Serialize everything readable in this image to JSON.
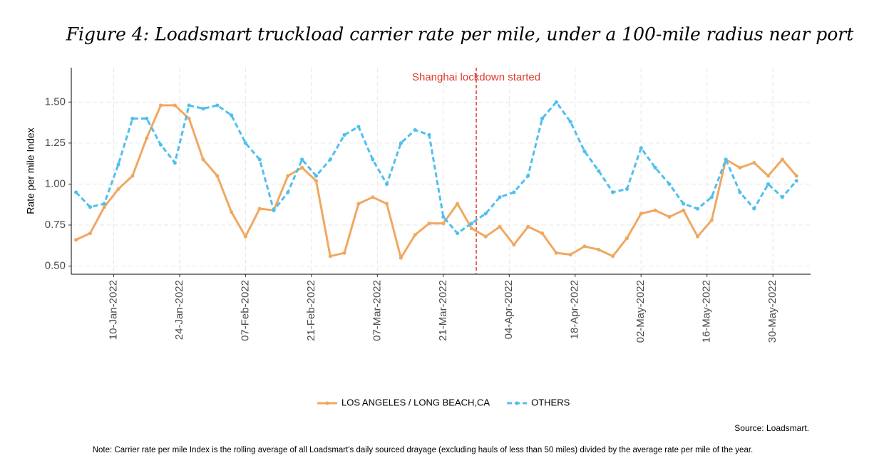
{
  "chart_data": {
    "type": "line",
    "title": "Figure 4: Loadsmart truckload carrier rate per mile, under a 100-mile radius near port",
    "y_label": "Rate per mile Index",
    "source": "Source: Loadsmart.",
    "note": "Note: Carrier rate per mile Index is the rolling average of all Loadsmart's daily sourced drayage (excluding hauls of less than 50 miles) divided by the average rate per mile of the year.",
    "annotation": {
      "x": "2022-03-28",
      "text": "Shanghai lockdown started",
      "color": "#e03a2f"
    },
    "x": [
      "2022-01-02",
      "2022-01-05",
      "2022-01-08",
      "2022-01-11",
      "2022-01-14",
      "2022-01-17",
      "2022-01-20",
      "2022-01-23",
      "2022-01-26",
      "2022-01-29",
      "2022-02-01",
      "2022-02-04",
      "2022-02-07",
      "2022-02-10",
      "2022-02-13",
      "2022-02-16",
      "2022-02-19",
      "2022-02-22",
      "2022-02-25",
      "2022-02-28",
      "2022-03-03",
      "2022-03-06",
      "2022-03-09",
      "2022-03-12",
      "2022-03-15",
      "2022-03-18",
      "2022-03-21",
      "2022-03-24",
      "2022-03-27",
      "2022-03-30",
      "2022-04-02",
      "2022-04-05",
      "2022-04-08",
      "2022-04-11",
      "2022-04-14",
      "2022-04-17",
      "2022-04-20",
      "2022-04-23",
      "2022-04-26",
      "2022-04-29",
      "2022-05-02",
      "2022-05-05",
      "2022-05-08",
      "2022-05-11",
      "2022-05-14",
      "2022-05-17",
      "2022-05-20",
      "2022-05-23",
      "2022-05-26",
      "2022-05-29",
      "2022-06-01",
      "2022-06-04"
    ],
    "series": [
      {
        "name": "LOS ANGELES / LONG BEACH,CA",
        "color": "#f0a860",
        "dash": false,
        "values": [
          0.66,
          0.7,
          0.86,
          0.97,
          1.05,
          1.28,
          1.48,
          1.48,
          1.4,
          1.15,
          1.05,
          0.83,
          0.68,
          0.85,
          0.84,
          1.05,
          1.1,
          1.02,
          0.56,
          0.58,
          0.88,
          0.92,
          0.88,
          0.55,
          0.69,
          0.76,
          0.76,
          0.88,
          0.73,
          0.68,
          0.74,
          0.63,
          0.74,
          0.7,
          0.58,
          0.57,
          0.62,
          0.6,
          0.56,
          0.67,
          0.82,
          0.84,
          0.8,
          0.84,
          0.68,
          0.78,
          1.15,
          1.1,
          1.13,
          1.05,
          1.15,
          1.05
        ]
      },
      {
        "name": "OTHERS",
        "color": "#4fbfef",
        "dash": true,
        "values": [
          0.95,
          0.86,
          0.88,
          1.12,
          1.4,
          1.4,
          1.24,
          1.13,
          1.48,
          1.46,
          1.48,
          1.42,
          1.25,
          1.15,
          0.84,
          0.95,
          1.15,
          1.05,
          1.15,
          1.3,
          1.35,
          1.15,
          1.0,
          1.25,
          1.33,
          1.3,
          0.8,
          0.7,
          0.76,
          0.82,
          0.92,
          0.95,
          1.05,
          1.4,
          1.5,
          1.38,
          1.2,
          1.08,
          0.95,
          0.97,
          1.22,
          1.1,
          1.0,
          0.88,
          0.85,
          0.92,
          1.15,
          0.95,
          0.85,
          1.0,
          0.92,
          1.02
        ]
      }
    ],
    "xlim": [
      "2022-01-01",
      "2022-06-07"
    ],
    "xticks": [
      {
        "value": "2022-01-10",
        "label": "10-Jan-2022"
      },
      {
        "value": "2022-01-24",
        "label": "24-Jan-2022"
      },
      {
        "value": "2022-02-07",
        "label": "07-Feb-2022"
      },
      {
        "value": "2022-02-21",
        "label": "21-Feb-2022"
      },
      {
        "value": "2022-03-07",
        "label": "07-Mar-2022"
      },
      {
        "value": "2022-03-21",
        "label": "21-Mar-2022"
      },
      {
        "value": "2022-04-04",
        "label": "04-Apr-2022"
      },
      {
        "value": "2022-04-18",
        "label": "18-Apr-2022"
      },
      {
        "value": "2022-05-02",
        "label": "02-May-2022"
      },
      {
        "value": "2022-05-16",
        "label": "16-May-2022"
      },
      {
        "value": "2022-05-30",
        "label": "30-May-2022"
      }
    ],
    "ylim": [
      0.45,
      1.71
    ],
    "yticks": [
      {
        "value": 0.5,
        "label": "0.50"
      },
      {
        "value": 0.75,
        "label": "0.75"
      },
      {
        "value": 1.0,
        "label": "1.00"
      },
      {
        "value": 1.25,
        "label": "1.25"
      },
      {
        "value": 1.5,
        "label": "1.50"
      }
    ],
    "grid": true,
    "legend": "bottom"
  }
}
